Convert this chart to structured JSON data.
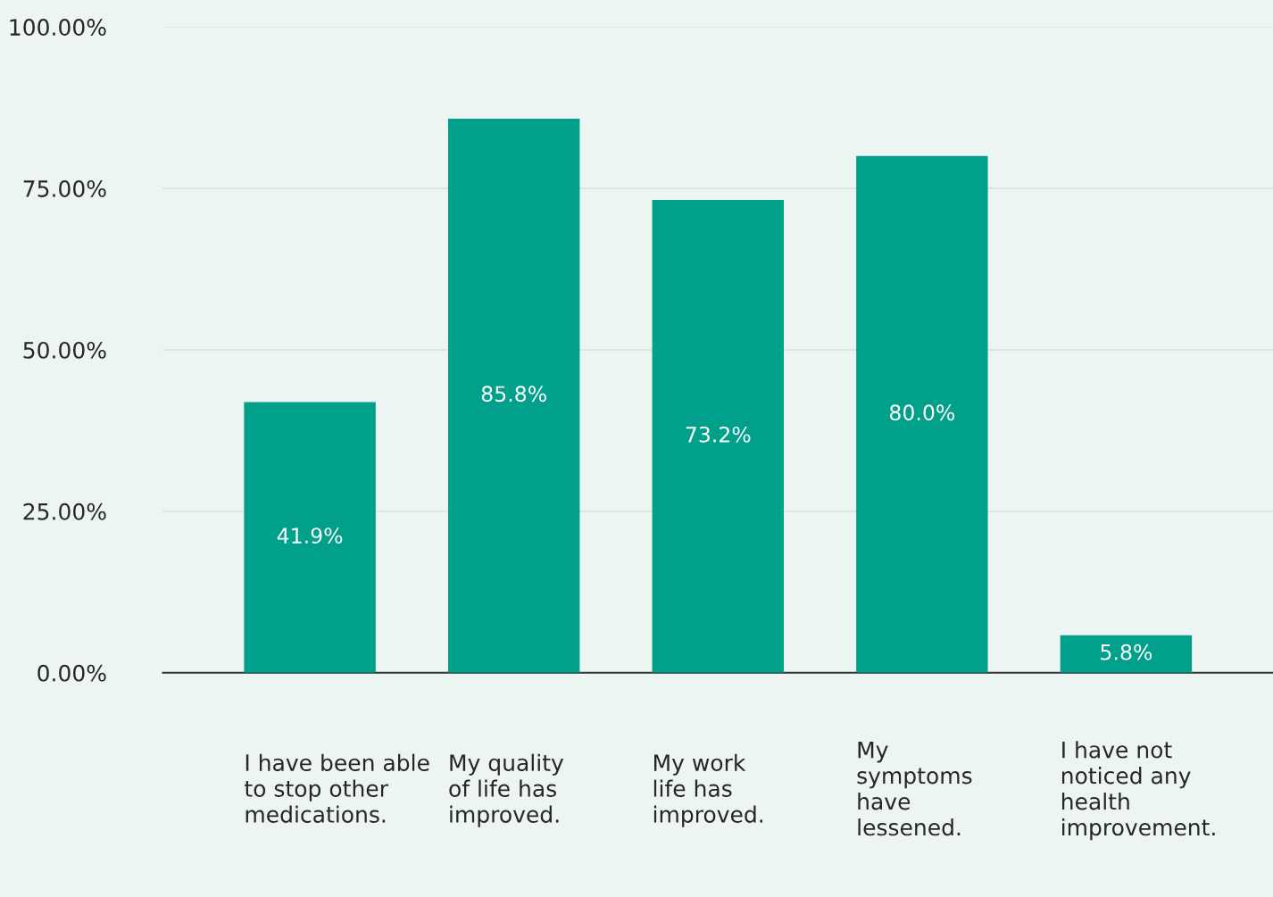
{
  "chart_data": {
    "type": "bar",
    "categories": [
      "I have been able\nto stop other\nmedications.",
      "My quality\nof life has\nimproved.",
      "My work\nlife has\nimproved.",
      "My\nsymptoms\nhave\nlessened.",
      "I have not\nnoticed any\nhealth\nimprovement."
    ],
    "values": [
      41.9,
      85.8,
      73.2,
      80.0,
      5.8
    ],
    "value_labels": [
      "41.9%",
      "85.8%",
      "73.2%",
      "80.0%",
      "5.8%"
    ],
    "color": "#00a08a",
    "ylim": [
      0,
      100
    ],
    "yticks": [
      {
        "value": 0,
        "label": "0.00%"
      },
      {
        "value": 25,
        "label": "25.00%"
      },
      {
        "value": 50,
        "label": "50.00%"
      },
      {
        "value": 75,
        "label": "75.00%"
      },
      {
        "value": 100,
        "label": "100.00%"
      }
    ],
    "grid": "y",
    "legend": false
  }
}
